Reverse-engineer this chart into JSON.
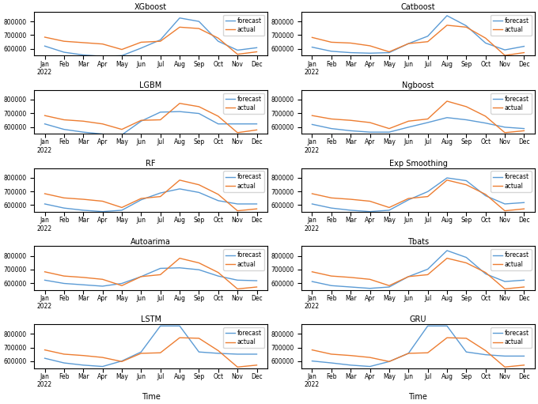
{
  "subplots": [
    {
      "title": "XGboost",
      "forecast": [
        620000,
        575000,
        555000,
        545000,
        550000,
        605000,
        665000,
        825000,
        800000,
        655000,
        590000,
        608000
      ],
      "actual": [
        685000,
        655000,
        645000,
        635000,
        595000,
        648000,
        655000,
        758000,
        748000,
        678000,
        560000,
        578000
      ]
    },
    {
      "title": "Catboost",
      "forecast": [
        612000,
        582000,
        572000,
        568000,
        572000,
        638000,
        692000,
        842000,
        768000,
        642000,
        592000,
        618000
      ],
      "actual": [
        683000,
        648000,
        642000,
        622000,
        578000,
        638000,
        652000,
        772000,
        758000,
        678000,
        552000,
        572000
      ]
    },
    {
      "title": "LGBM",
      "forecast": [
        622000,
        582000,
        562000,
        548000,
        542000,
        642000,
        708000,
        712000,
        698000,
        622000,
        622000,
        622000
      ],
      "actual": [
        683000,
        652000,
        642000,
        622000,
        582000,
        648000,
        652000,
        772000,
        748000,
        678000,
        558000,
        578000
      ]
    },
    {
      "title": "Ngboost",
      "forecast": [
        618000,
        588000,
        572000,
        562000,
        562000,
        598000,
        632000,
        668000,
        652000,
        628000,
        598000,
        588000
      ],
      "actual": [
        683000,
        658000,
        648000,
        632000,
        588000,
        642000,
        658000,
        788000,
        748000,
        678000,
        558000,
        572000
      ]
    },
    {
      "title": "RF",
      "forecast": [
        608000,
        578000,
        562000,
        552000,
        562000,
        638000,
        688000,
        718000,
        692000,
        632000,
        608000,
        608000
      ],
      "actual": [
        683000,
        652000,
        642000,
        628000,
        582000,
        648000,
        662000,
        782000,
        748000,
        678000,
        558000,
        572000
      ]
    },
    {
      "title": "Exp Smoothing",
      "forecast": [
        608000,
        578000,
        562000,
        552000,
        562000,
        638000,
        698000,
        798000,
        778000,
        668000,
        608000,
        618000
      ],
      "actual": [
        683000,
        652000,
        642000,
        628000,
        582000,
        648000,
        662000,
        782000,
        748000,
        678000,
        558000,
        572000
      ]
    },
    {
      "title": "Autoarima",
      "forecast": [
        622000,
        598000,
        588000,
        578000,
        598000,
        648000,
        708000,
        712000,
        698000,
        652000,
        622000,
        618000
      ],
      "actual": [
        683000,
        652000,
        642000,
        628000,
        582000,
        648000,
        662000,
        782000,
        748000,
        678000,
        558000,
        572000
      ]
    },
    {
      "title": "Tbats",
      "forecast": [
        612000,
        582000,
        572000,
        562000,
        572000,
        648000,
        702000,
        838000,
        788000,
        668000,
        612000,
        622000
      ],
      "actual": [
        683000,
        652000,
        642000,
        628000,
        582000,
        648000,
        662000,
        782000,
        748000,
        678000,
        558000,
        572000
      ]
    },
    {
      "title": "LSTM",
      "forecast": [
        622000,
        588000,
        572000,
        562000,
        602000,
        668000,
        858000,
        858000,
        668000,
        658000,
        652000,
        652000
      ],
      "actual": [
        683000,
        652000,
        642000,
        628000,
        598000,
        658000,
        662000,
        772000,
        768000,
        678000,
        558000,
        572000
      ]
    },
    {
      "title": "GRU",
      "forecast": [
        602000,
        588000,
        572000,
        562000,
        598000,
        658000,
        858000,
        858000,
        668000,
        648000,
        638000,
        638000
      ],
      "actual": [
        683000,
        652000,
        642000,
        628000,
        598000,
        658000,
        662000,
        772000,
        768000,
        678000,
        558000,
        572000
      ]
    }
  ],
  "months": [
    "Jan\n2022",
    "Feb",
    "Mar",
    "Apr",
    "May",
    "Jun",
    "Jul",
    "Aug",
    "Sep",
    "Oct",
    "Nov",
    "Dec"
  ],
  "forecast_color": "#5b9bd5",
  "actual_color": "#ed7d31",
  "xlabel": "Time",
  "figsize": [
    6.8,
    5.11
  ],
  "dpi": 100
}
